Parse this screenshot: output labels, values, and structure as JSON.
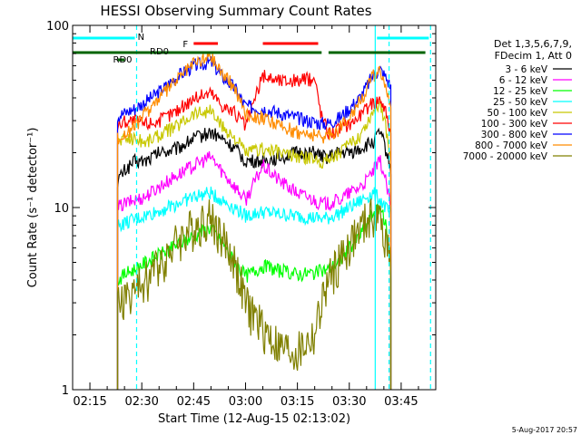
{
  "chart_data": {
    "type": "line",
    "title": "HESSI Observing Summary Count Rates",
    "xlabel": "Start Time (12-Aug-15 02:13:02)",
    "ylabel": "Count Rate (s⁻¹ detector⁻¹)",
    "y_scale": "log",
    "ylim": [
      1,
      100
    ],
    "xlim_minutes_after_0200": [
      10,
      115
    ],
    "x_ticks": [
      "02:15",
      "02:30",
      "02:45",
      "03:00",
      "03:15",
      "03:30",
      "03:45"
    ],
    "y_ticks": [
      "1",
      "10",
      "100"
    ],
    "grid": false,
    "legend": {
      "placement": "right",
      "header": [
        "Det 1,3,5,6,7,9,",
        "FDecim 1, Att 0"
      ],
      "entries": [
        {
          "label": "3 - 6 keV",
          "color": "#000000"
        },
        {
          "label": "6 - 12 keV",
          "color": "#ff00ff"
        },
        {
          "label": "12 - 25 keV",
          "color": "#00ff00"
        },
        {
          "label": "25 - 50 keV",
          "color": "#00ffff"
        },
        {
          "label": "50 - 100 keV",
          "color": "#c8c800"
        },
        {
          "label": "100 - 300 keV",
          "color": "#ff0000"
        },
        {
          "label": "300 - 800 keV",
          "color": "#0000ff"
        },
        {
          "label": "800 - 7000 keV",
          "color": "#ff8c00"
        },
        {
          "label": "7000 - 20000 keV",
          "color": "#808000"
        }
      ]
    },
    "annotations": [
      {
        "label": "N",
        "color": "#00ffff",
        "kind": "night",
        "intervals": [
          [
            10,
            28
          ],
          [
            98,
            113
          ]
        ]
      },
      {
        "label": "F",
        "color": "#ff0000",
        "kind": "flare",
        "intervals": [
          [
            45,
            52
          ],
          [
            65,
            81
          ]
        ]
      },
      {
        "label": "RD0",
        "color": "#006400",
        "kind": "rd0",
        "intervals": [
          [
            10,
            82
          ],
          [
            84,
            112
          ]
        ]
      },
      {
        "label": "RD0",
        "color": "#006400",
        "kind": "rd0-short",
        "intervals": [
          [
            23,
            25
          ]
        ]
      }
    ],
    "vlines": [
      {
        "x": 28.5,
        "color": "#00ffff",
        "style": "dashed"
      },
      {
        "x": 97.5,
        "color": "#00ffff",
        "style": "solid"
      },
      {
        "x": 101.5,
        "color": "#00ffff",
        "style": "dashed"
      },
      {
        "x": 113.5,
        "color": "#00ffff",
        "style": "dashed"
      }
    ],
    "x": [
      23,
      25,
      28,
      31,
      35,
      40,
      45,
      50,
      53,
      57,
      60,
      65,
      70,
      75,
      80,
      82,
      84,
      87,
      90,
      93,
      95,
      97,
      99,
      100.5,
      102
    ],
    "series": [
      {
        "name": "3 - 6 keV",
        "color": "#000000",
        "values": [
          14,
          16,
          18,
          18,
          20,
          21,
          24,
          26,
          24,
          21,
          18,
          18,
          19,
          20,
          20,
          19,
          19,
          20,
          20,
          21,
          22,
          23,
          26,
          21,
          16
        ]
      },
      {
        "name": "6 - 12 keV",
        "color": "#ff00ff",
        "values": [
          10,
          10.5,
          11,
          11.5,
          13,
          15,
          17,
          19,
          16,
          13,
          11,
          17,
          14,
          12,
          11,
          10.5,
          10.5,
          11,
          12,
          13,
          14,
          16,
          18,
          14,
          10
        ]
      },
      {
        "name": "12 - 25 keV",
        "color": "#00ff00",
        "values": [
          4,
          4.3,
          4.6,
          5,
          5.5,
          6.2,
          7,
          7.8,
          6.5,
          5,
          4.2,
          4.8,
          4.5,
          4.3,
          4.4,
          4.5,
          4.6,
          5,
          6,
          7,
          8,
          9.5,
          10,
          8,
          5
        ]
      },
      {
        "name": "25 - 50 keV",
        "color": "#00ffff",
        "values": [
          8,
          8.2,
          8.6,
          9,
          9.6,
          10.5,
          11.5,
          12,
          11,
          10,
          9,
          9.5,
          9.2,
          9,
          8.8,
          8.7,
          8.8,
          9.3,
          10,
          10.8,
          11.5,
          12,
          11,
          10,
          9
        ]
      },
      {
        "name": "50 - 100 keV",
        "color": "#c8c800",
        "values": [
          23,
          24,
          24,
          23,
          25,
          28,
          33,
          34,
          28,
          24,
          20,
          21,
          20,
          19,
          18.5,
          18,
          18.5,
          20,
          22,
          25,
          29,
          34,
          38,
          28,
          18
        ]
      },
      {
        "name": "100 - 300 keV",
        "color": "#ff0000",
        "values": [
          28,
          30,
          30,
          29,
          30,
          34,
          40,
          43,
          37,
          33,
          28,
          53,
          50,
          50,
          51,
          32,
          26,
          27,
          29,
          32,
          35,
          38,
          40,
          34,
          26
        ]
      },
      {
        "name": "300 - 800 keV",
        "color": "#0000ff",
        "values": [
          32,
          33,
          35,
          38,
          43,
          52,
          60,
          63,
          53,
          45,
          36,
          35,
          33,
          31,
          29.5,
          29,
          29,
          31,
          35,
          40,
          46,
          54,
          57,
          52,
          46
        ]
      },
      {
        "name": "800 - 7000 keV",
        "color": "#ff8c00",
        "values": [
          24,
          25,
          28,
          33,
          40,
          50,
          62,
          68,
          56,
          45,
          33,
          31,
          28,
          26,
          25,
          24.5,
          25,
          27,
          32,
          38,
          45,
          53,
          58,
          46,
          33
        ]
      },
      {
        "name": "7000 - 20000 keV",
        "color": "#808000",
        "values": [
          3,
          3.2,
          3.5,
          4,
          5,
          6.5,
          8,
          9,
          7,
          5,
          3,
          2.2,
          1.7,
          1.6,
          2,
          3,
          4,
          5,
          6.3,
          7.5,
          8.5,
          9,
          8.6,
          7,
          5
        ]
      }
    ]
  },
  "footer": {
    "stamp": "5-Aug-2017 20:57"
  }
}
